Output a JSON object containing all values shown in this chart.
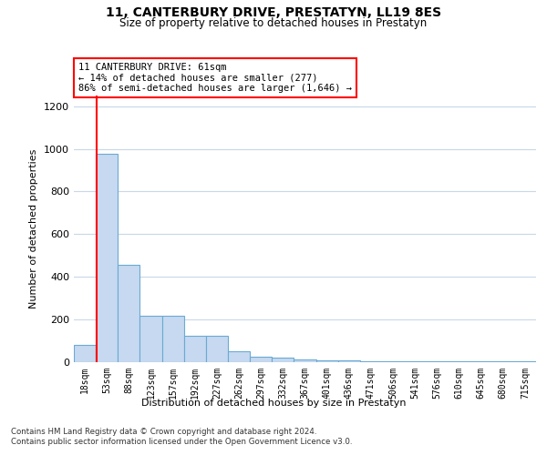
{
  "title": "11, CANTERBURY DRIVE, PRESTATYN, LL19 8ES",
  "subtitle": "Size of property relative to detached houses in Prestatyn",
  "xlabel": "Distribution of detached houses by size in Prestatyn",
  "ylabel": "Number of detached properties",
  "bar_labels": [
    "18sqm",
    "53sqm",
    "88sqm",
    "123sqm",
    "157sqm",
    "192sqm",
    "227sqm",
    "262sqm",
    "297sqm",
    "332sqm",
    "367sqm",
    "401sqm",
    "436sqm",
    "471sqm",
    "506sqm",
    "541sqm",
    "576sqm",
    "610sqm",
    "645sqm",
    "680sqm",
    "715sqm"
  ],
  "bar_values": [
    80,
    975,
    455,
    215,
    215,
    120,
    120,
    50,
    25,
    20,
    10,
    8,
    5,
    4,
    3,
    2,
    2,
    1,
    1,
    1,
    1
  ],
  "bar_color": "#c6d9f0",
  "bar_edge_color": "#6aaad4",
  "annotation_box_text": "11 CANTERBURY DRIVE: 61sqm\n← 14% of detached houses are smaller (277)\n86% of semi-detached houses are larger (1,646) →",
  "red_line_x": 1.0,
  "ylim": [
    0,
    1250
  ],
  "yticks": [
    0,
    200,
    400,
    600,
    800,
    1000,
    1200
  ],
  "footer_line1": "Contains HM Land Registry data © Crown copyright and database right 2024.",
  "footer_line2": "Contains public sector information licensed under the Open Government Licence v3.0.",
  "bg_color": "#ffffff",
  "grid_color": "#c8d8e8",
  "title_fontsize": 10,
  "subtitle_fontsize": 8.5
}
